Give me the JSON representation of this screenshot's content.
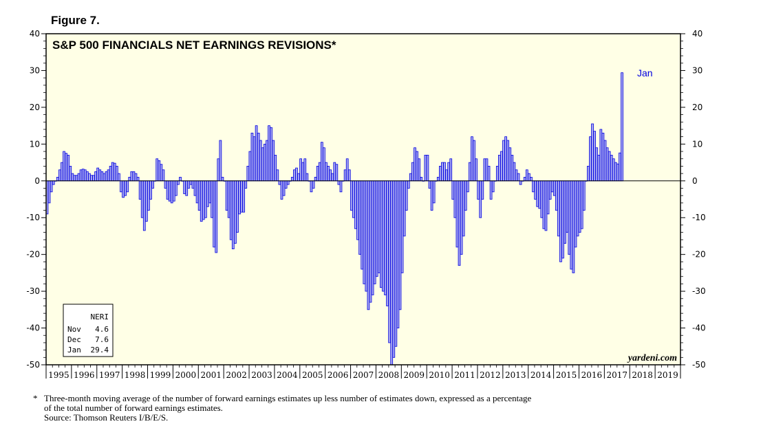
{
  "figure_label": "Figure 7.",
  "footnote": {
    "marker": "*",
    "line1": "Three-month moving average of the number of forward earnings estimates up less number of estimates down, expressed as a percentage",
    "line2": "of the total number of forward earnings estimates.",
    "source": "Source: Thomson Reuters I/B/E/S."
  },
  "colors": {
    "plot_bg": "#ffffe6",
    "bar_fill": "#a8a8f0",
    "bar_stroke": "#0000e0",
    "annotation": "#0000e0"
  },
  "chart_data": {
    "type": "bar",
    "title": "S&P 500 FINANCIALS NET EARNINGS REVISIONS*",
    "ylim": [
      -50,
      40
    ],
    "yticks": [
      40,
      30,
      20,
      10,
      0,
      -10,
      -20,
      -30,
      -40,
      -50
    ],
    "xlim": [
      1995,
      2020
    ],
    "x_tick_labels": [
      "1995",
      "1996",
      "1997",
      "1998",
      "1999",
      "2000",
      "2001",
      "2002",
      "2003",
      "2004",
      "2005",
      "2006",
      "2007",
      "2008",
      "2009",
      "2010",
      "2011",
      "2012",
      "2013",
      "2014",
      "2015",
      "2016",
      "2017",
      "2018",
      "2019"
    ],
    "annotation": "Jan",
    "watermark": "yardeni.com",
    "legend": {
      "title": "NERI",
      "rows": [
        {
          "month": "Nov",
          "value": "4.6"
        },
        {
          "month": "Dec",
          "value": "7.6"
        },
        {
          "month": "Jan",
          "value": "29.4"
        }
      ]
    },
    "series_name": "NERI",
    "start_year": 1995.0,
    "step_years": 0.0833,
    "values": [
      -9,
      -6,
      -3,
      -1,
      0,
      1,
      3,
      5,
      8,
      7.5,
      7,
      4,
      2,
      1.5,
      1.5,
      2,
      3,
      3.2,
      3,
      2.5,
      2,
      1.5,
      1.5,
      2.5,
      3.5,
      3,
      2.5,
      2,
      2.5,
      3,
      4,
      5,
      4.8,
      4,
      2,
      -3,
      -4.5,
      -4,
      -3,
      1,
      2.5,
      2.5,
      2,
      1,
      -5,
      -10,
      -13.5,
      -11,
      -8,
      -5,
      -2,
      0,
      6,
      5.5,
      4.5,
      3,
      -2,
      -5,
      -5.5,
      -6,
      -5.5,
      -4,
      -1,
      1,
      0,
      -3.5,
      -4,
      -2,
      -1,
      -2,
      -4,
      -6,
      -8,
      -11,
      -10.5,
      -10,
      -7,
      -6,
      -10,
      -18,
      -19.5,
      6,
      11,
      1,
      0,
      -8,
      -10,
      -16,
      -18.5,
      -17,
      -14,
      -9,
      -8.5,
      -8.5,
      -2,
      4,
      8,
      13,
      12,
      15,
      13,
      11,
      9,
      10,
      11,
      15,
      14.5,
      11,
      7,
      3,
      -1,
      -5,
      -4,
      -2,
      -1,
      0,
      1,
      3,
      3.5,
      2,
      6,
      5,
      6,
      2,
      0,
      -3,
      -2,
      1,
      4,
      5,
      10.5,
      9,
      5,
      4,
      3,
      2,
      5,
      4.5,
      -1,
      -3,
      0,
      3,
      6,
      3,
      -8,
      -10,
      -13,
      -16,
      -20,
      -24,
      -28,
      -30,
      -35,
      -33,
      -31,
      -28,
      -26,
      -25,
      -29,
      -30,
      -31,
      -34,
      -44,
      -50,
      -48,
      -45,
      -40,
      -35,
      -25,
      -15,
      -8,
      -2,
      2,
      5,
      9,
      8,
      6,
      1,
      0,
      7,
      7,
      -2,
      -8,
      -6,
      0,
      1,
      4,
      5,
      5,
      3,
      5,
      6,
      -5,
      -10,
      -18,
      -23,
      -20,
      -15,
      -8,
      -3,
      5,
      12,
      11,
      6,
      -5,
      -10,
      -5,
      6,
      6,
      4,
      -5,
      -3,
      0,
      4,
      7,
      8,
      11,
      12,
      11,
      9,
      7,
      5,
      3,
      2,
      -1,
      0,
      1,
      3,
      2,
      1,
      -3,
      -5,
      -7,
      -7.5,
      -10,
      -13,
      -13.5,
      -9,
      -5,
      -3,
      -4,
      -8,
      -15,
      -22,
      -21,
      -17,
      -14,
      -20,
      -24,
      -25,
      -18,
      -15,
      -14,
      -13,
      -8,
      0,
      4,
      12,
      15.5,
      13.5,
      9,
      7,
      14,
      13,
      11,
      9,
      8,
      7,
      6,
      5,
      4.6,
      7.6,
      29.4
    ]
  }
}
